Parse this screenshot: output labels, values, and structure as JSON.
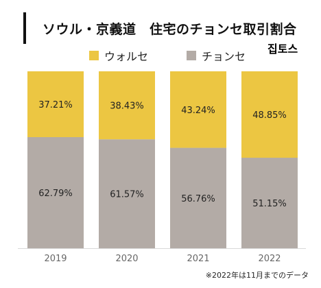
{
  "title": "ソウル・京義道　住宅のチョンセ取引割合",
  "logo_text": "집토스",
  "note": "※2022年は11月までのデータ",
  "chart_data": {
    "type": "bar",
    "stacked": true,
    "categories": [
      "2019",
      "2020",
      "2021",
      "2022"
    ],
    "series": [
      {
        "name": "チョンセ",
        "color": "#b3aba6",
        "values": [
          62.79,
          61.57,
          56.76,
          51.15
        ],
        "labels": [
          "62.79%",
          "61.57%",
          "56.76%",
          "51.15%"
        ]
      },
      {
        "name": "ウォルセ",
        "color": "#ecc642",
        "values": [
          37.21,
          38.43,
          43.24,
          48.85
        ],
        "labels": [
          "37.21%",
          "38.43%",
          "43.24%",
          "48.85%"
        ]
      }
    ],
    "legend_order": [
      "ウォルセ",
      "チョンセ"
    ],
    "ylim": [
      0,
      100
    ],
    "xlabel": "",
    "ylabel": "",
    "legend_position": "top",
    "grid": false
  }
}
